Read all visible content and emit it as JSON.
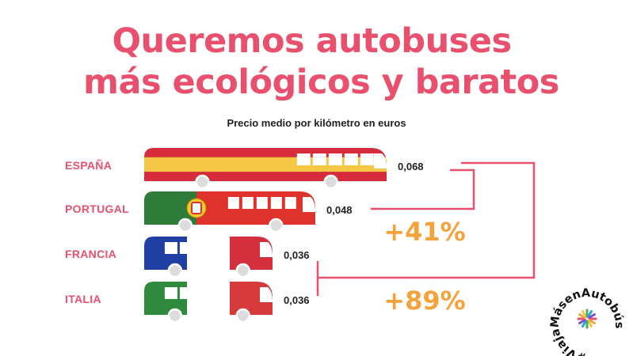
{
  "title_line1": "Queremos autobuses",
  "title_line2": "más ecológicos y baratos",
  "chart_data": {
    "type": "bar",
    "title": "Queremos autobuses más ecológicos y baratos",
    "subtitle": "Precio medio por kilómetro en euros",
    "categories": [
      "ESPAÑA",
      "PORTUGAL",
      "FRANCIA",
      "ITALIA"
    ],
    "values": [
      0.068,
      0.048,
      0.036,
      0.036
    ],
    "value_labels": [
      "0,068",
      "0,048",
      "0,036",
      "0,036"
    ],
    "annotations": [
      {
        "label": "+41%",
        "from": "ESPAÑA",
        "to": "PORTUGAL"
      },
      {
        "label": "+89%",
        "from": "ESPAÑA",
        "to": "FRANCIA / ITALIA"
      }
    ]
  },
  "hashtag": "#ViajaMásenAutobús",
  "colors": {
    "accent": "#e8506e",
    "annotation": "#f4a23c",
    "spain_red": "#d62b3a",
    "spain_yellow": "#f6c744",
    "portugal_green": "#2f7c3a",
    "portugal_red": "#e0322c",
    "france_blue": "#1f3fa3",
    "france_red": "#d32f3d",
    "italy_green": "#2f8a3d",
    "italy_red": "#d63a3a",
    "wheel": "#dcdcdc"
  }
}
